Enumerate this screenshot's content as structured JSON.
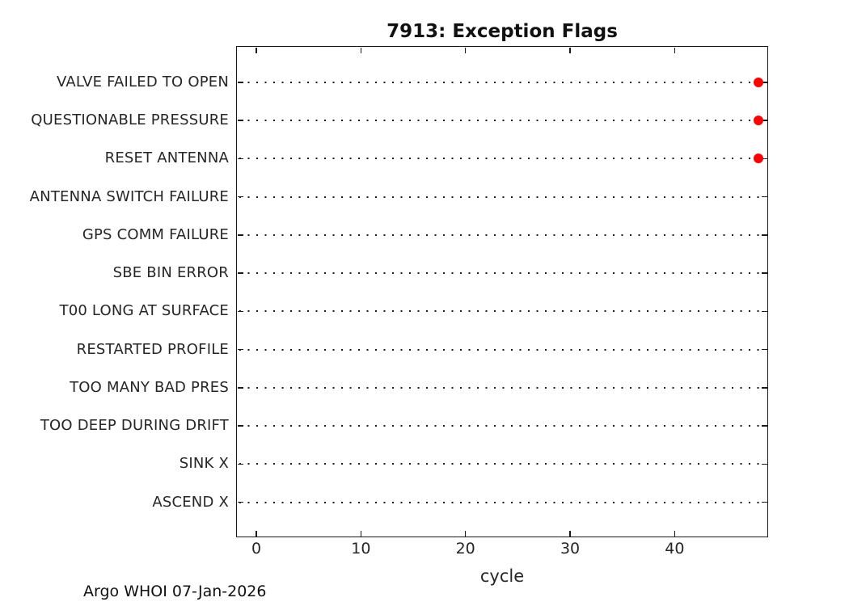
{
  "figure": {
    "footer_caption": "Argo WHOI 07-Jan-2026"
  },
  "chart_data": {
    "type": "scatter",
    "title": "7913: Exception Flags",
    "xlabel": "cycle",
    "ylabel": "",
    "categories": [
      "VALVE FAILED TO OPEN",
      "QUESTIONABLE PRESSURE",
      "RESET ANTENNA",
      "ANTENNA SWITCH FAILURE",
      "GPS COMM FAILURE",
      "SBE BIN ERROR",
      "T00 LONG AT SURFACE",
      "RESTARTED PROFILE",
      "TOO MANY BAD PRES",
      "TOO DEEP DURING DRIFT",
      "SINK X",
      "ASCEND X"
    ],
    "x_ticks": [
      "0",
      "10",
      "20",
      "30",
      "40"
    ],
    "x_tick_values": [
      0,
      10,
      20,
      30,
      40
    ],
    "xlim": [
      -1.95,
      48.95
    ],
    "grid": "horizontal-dotted",
    "legend_position": "none",
    "series": [
      {
        "name": "exception-flag-events",
        "marker": "filled-circle",
        "color": "#ff0000",
        "points": [
          {
            "category": "VALVE FAILED TO OPEN",
            "x": 48
          },
          {
            "category": "QUESTIONABLE PRESSURE",
            "x": 48
          },
          {
            "category": "RESET ANTENNA",
            "x": 48
          }
        ]
      }
    ],
    "colors": {
      "axis": "#1a1a1a",
      "text": "#262626",
      "marker": "#ff0000",
      "background": "#ffffff"
    }
  }
}
